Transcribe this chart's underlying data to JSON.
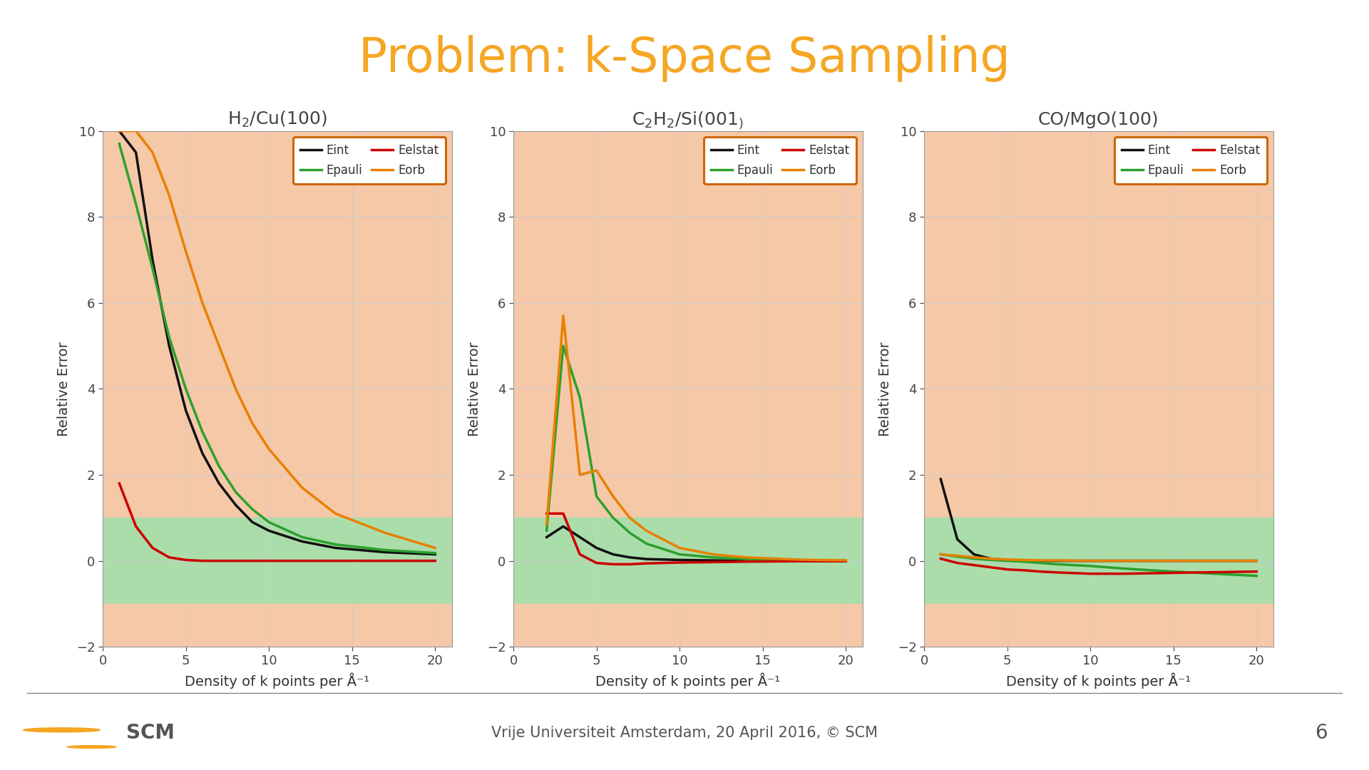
{
  "title": "Problem: k-Space Sampling",
  "title_color": "#F5A623",
  "title_fontsize": 48,
  "plots": [
    {
      "subplot_title": "H$_2$/Cu(100)",
      "x": [
        1,
        2,
        3,
        4,
        5,
        6,
        7,
        8,
        9,
        10,
        12,
        14,
        17,
        20
      ],
      "Eint": [
        10.0,
        9.5,
        7.0,
        5.0,
        3.5,
        2.5,
        1.8,
        1.3,
        0.9,
        0.7,
        0.45,
        0.3,
        0.2,
        0.15
      ],
      "Epauli": [
        9.7,
        8.3,
        6.8,
        5.2,
        4.0,
        3.0,
        2.2,
        1.6,
        1.2,
        0.9,
        0.55,
        0.38,
        0.25,
        0.18
      ],
      "Eelstat": [
        1.8,
        0.8,
        0.3,
        0.08,
        0.02,
        0.0,
        0.0,
        0.0,
        0.0,
        0.0,
        0.0,
        0.0,
        0.0,
        0.0
      ],
      "Eorb": [
        10.0,
        10.0,
        9.5,
        8.5,
        7.2,
        6.0,
        5.0,
        4.0,
        3.2,
        2.6,
        1.7,
        1.1,
        0.65,
        0.3
      ]
    },
    {
      "subplot_title": "C$_2$H$_2$/Si(001$_)$",
      "x": [
        2,
        3,
        4,
        5,
        6,
        7,
        8,
        10,
        12,
        14,
        17,
        18,
        20
      ],
      "Eint": [
        0.55,
        0.8,
        0.55,
        0.3,
        0.15,
        0.08,
        0.04,
        0.02,
        0.01,
        0.0,
        0.0,
        0.0,
        0.0
      ],
      "Epauli": [
        0.7,
        5.0,
        3.8,
        1.5,
        1.0,
        0.65,
        0.4,
        0.15,
        0.08,
        0.04,
        0.02,
        0.01,
        0.0
      ],
      "Eelstat": [
        1.1,
        1.1,
        0.15,
        -0.05,
        -0.08,
        -0.08,
        -0.06,
        -0.04,
        -0.03,
        -0.02,
        -0.01,
        -0.01,
        -0.01
      ],
      "Eorb": [
        0.85,
        5.7,
        2.0,
        2.1,
        1.5,
        1.0,
        0.7,
        0.3,
        0.15,
        0.08,
        0.03,
        0.02,
        0.01
      ]
    },
    {
      "subplot_title": "CO/MgO(100)",
      "x": [
        1,
        2,
        3,
        4,
        5,
        6,
        7,
        8,
        10,
        12,
        15,
        20
      ],
      "Eint": [
        1.9,
        0.5,
        0.15,
        0.05,
        0.02,
        0.01,
        0.0,
        0.0,
        0.0,
        0.0,
        0.0,
        0.0
      ],
      "Epauli": [
        0.15,
        0.1,
        0.05,
        0.02,
        0.0,
        -0.02,
        -0.05,
        -0.08,
        -0.12,
        -0.18,
        -0.25,
        -0.35
      ],
      "Eelstat": [
        0.05,
        -0.05,
        -0.1,
        -0.15,
        -0.2,
        -0.22,
        -0.25,
        -0.27,
        -0.3,
        -0.3,
        -0.28,
        -0.25
      ],
      "Eorb": [
        0.15,
        0.12,
        0.08,
        0.05,
        0.03,
        0.02,
        0.01,
        0.01,
        0.0,
        0.0,
        0.0,
        0.0
      ]
    }
  ],
  "colors": {
    "Eint": "#111111",
    "Epauli": "#2ca02c",
    "Eelstat": "#cc0000",
    "Eorb": "#e88000"
  },
  "xlim": [
    0,
    21
  ],
  "ylim": [
    -2,
    10
  ],
  "xlabel": "Density of k points per Å⁻¹",
  "ylabel": "Relative Error",
  "green_band_lo": -1,
  "green_band_hi": 1,
  "orange_band_lo": 1,
  "orange_band_hi": 10,
  "orange_below_lo": -2,
  "orange_below_hi": -1,
  "green_color": "#aaddaa",
  "orange_color": "#f5c8a8",
  "legend_edgecolor": "#cc6600",
  "footer_text": "Vrije Universiteit Amsterdam, 20 April 2016, © SCM",
  "page_number": "6",
  "subplot_title_fontsize": 18,
  "axis_label_fontsize": 14,
  "tick_fontsize": 13,
  "legend_fontsize": 12
}
